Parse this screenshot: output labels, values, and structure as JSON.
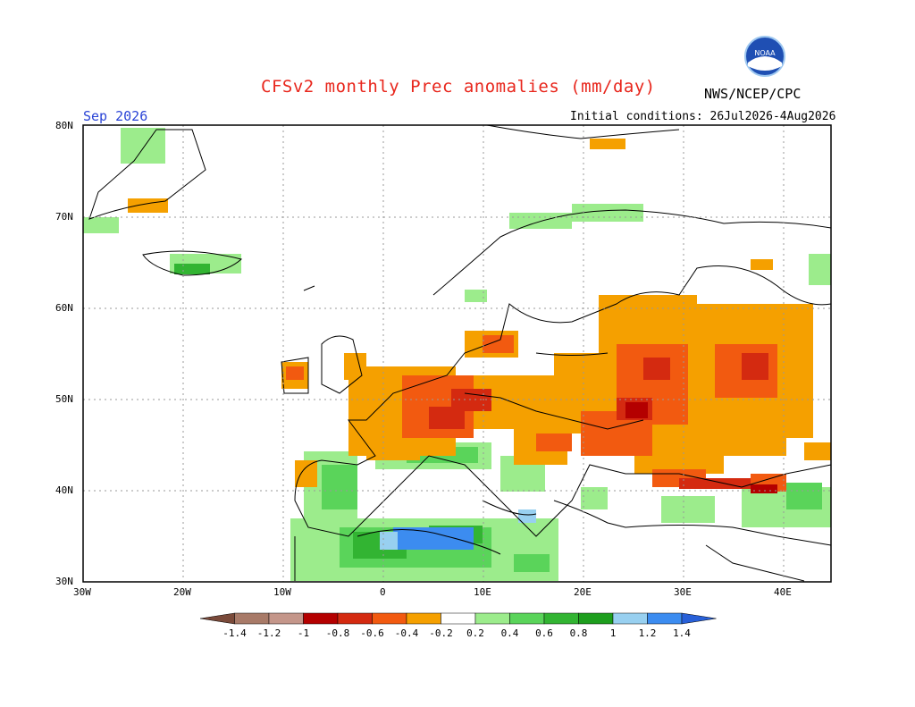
{
  "header": {
    "title": "CFSv2 monthly Prec anomalies (mm/day)",
    "org": "NWS/NCEP/CPC",
    "month": "Sep 2026",
    "initial_conditions": "Initial conditions: 26Jul2026-4Aug2026",
    "logo_text": "NOAA"
  },
  "axes": {
    "lat_labels": [
      "80N",
      "70N",
      "60N",
      "50N",
      "40N",
      "30N"
    ],
    "lon_labels": [
      "30W",
      "20W",
      "10W",
      "0",
      "10E",
      "20E",
      "30E",
      "40E"
    ]
  },
  "colorbar": {
    "labels": [
      "-1.4",
      "-1.2",
      "-1",
      "-0.8",
      "-0.6",
      "-0.4",
      "-0.2",
      "0.2",
      "0.4",
      "0.6",
      "0.8",
      "1",
      "1.2",
      "1.4"
    ],
    "colors": [
      "#7a4a3a",
      "#a87a68",
      "#c4968a",
      "#b40000",
      "#d42a10",
      "#f25a10",
      "#f5a000",
      "#ffffff",
      "#9cec8c",
      "#5ad45a",
      "#32b432",
      "#1e9e1e",
      "#98d0f0",
      "#3c8cf0",
      "#2860d8"
    ]
  },
  "colors": {
    "dry_weak": "#f5a000",
    "dry_mid": "#f25a10",
    "dry_strong": "#d42a10",
    "wet_weak": "#9cec8c",
    "wet_mid": "#5ad45a",
    "wet_strong": "#32b432",
    "wet_vstrong": "#3c8cf0"
  }
}
